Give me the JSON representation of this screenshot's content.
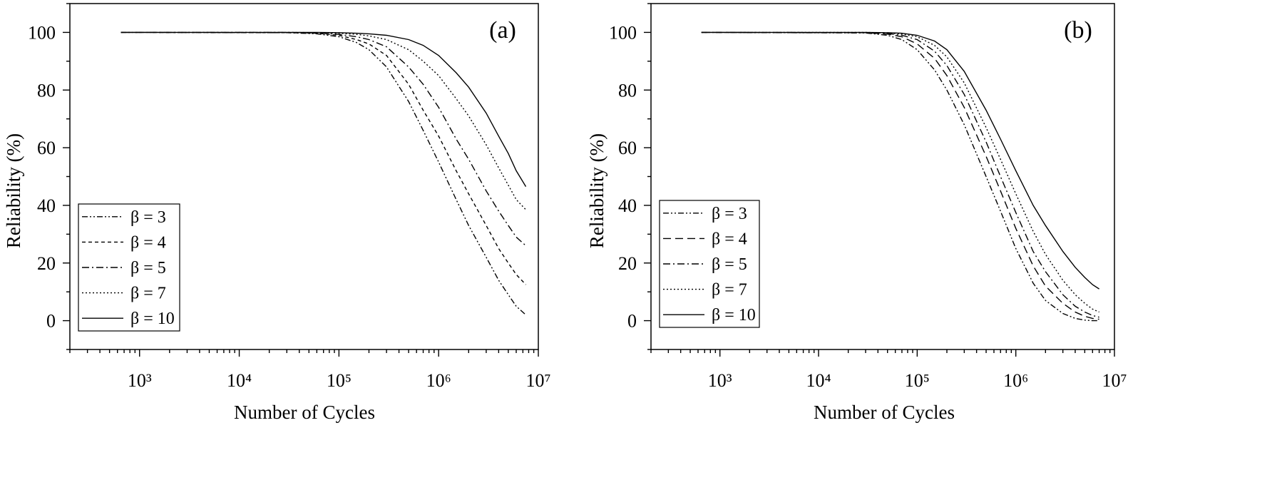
{
  "chart_data": [
    {
      "type": "line",
      "panel_label": "(a)",
      "xlabel": "Number of Cycles",
      "ylabel": "Reliability (%)",
      "x_scale": "log",
      "xlim": [
        200,
        10000000
      ],
      "ylim": [
        -10,
        110
      ],
      "x_ticks": [
        1000,
        10000,
        100000,
        1000000,
        10000000
      ],
      "y_ticks": [
        0,
        20,
        40,
        60,
        80,
        100
      ],
      "legend_position": "lower-left",
      "series": [
        {
          "name": "β = 3",
          "dash": "dash-dot-dot",
          "x": [
            650,
            30000,
            60000,
            100000,
            150000,
            200000,
            300000,
            500000,
            700000,
            1000000,
            1500000,
            2000000,
            3000000,
            4000000,
            5000000,
            6000000,
            7500000
          ],
          "y": [
            100,
            99.9,
            99.5,
            98.5,
            96.5,
            94,
            88,
            76,
            66,
            55,
            42,
            33,
            22,
            14,
            9,
            5,
            2
          ]
        },
        {
          "name": "β = 4",
          "dash": "short-dash",
          "x": [
            650,
            30000,
            60000,
            100000,
            150000,
            200000,
            300000,
            500000,
            700000,
            1000000,
            1500000,
            2000000,
            3000000,
            4000000,
            5000000,
            6000000,
            7500000
          ],
          "y": [
            100,
            99.9,
            99.7,
            99,
            97.5,
            96,
            92,
            82,
            73,
            64,
            52,
            44,
            33,
            25,
            20,
            16,
            12.5
          ]
        },
        {
          "name": "β = 5",
          "dash": "dash-dot",
          "x": [
            650,
            30000,
            60000,
            100000,
            150000,
            200000,
            300000,
            500000,
            700000,
            1000000,
            1500000,
            2000000,
            3000000,
            4000000,
            5000000,
            6000000,
            7500000
          ],
          "y": [
            100,
            100,
            99.8,
            99.3,
            98.5,
            97.5,
            95,
            88,
            82,
            74,
            63,
            56,
            45,
            38,
            33,
            29,
            26
          ]
        },
        {
          "name": "β = 7",
          "dash": "dotted",
          "x": [
            650,
            30000,
            60000,
            100000,
            150000,
            200000,
            300000,
            500000,
            700000,
            1000000,
            1500000,
            2000000,
            3000000,
            4000000,
            5000000,
            6000000,
            7500000
          ],
          "y": [
            100,
            100,
            99.9,
            99.7,
            99.3,
            98.8,
            97.5,
            94,
            90,
            85,
            77,
            71,
            61,
            53,
            47,
            42,
            38.5
          ]
        },
        {
          "name": "β = 10",
          "dash": "solid",
          "x": [
            650,
            30000,
            60000,
            100000,
            150000,
            200000,
            300000,
            500000,
            700000,
            1000000,
            1500000,
            2000000,
            3000000,
            4000000,
            5000000,
            6000000,
            7500000
          ],
          "y": [
            100,
            100,
            100,
            99.9,
            99.7,
            99.5,
            99,
            97.5,
            95.5,
            92,
            86,
            81,
            72,
            64,
            58,
            52,
            46.5
          ]
        }
      ]
    },
    {
      "type": "line",
      "panel_label": "(b)",
      "xlabel": "Number of Cycles",
      "ylabel": "Reliability (%)",
      "x_scale": "log",
      "xlim": [
        200,
        10000000
      ],
      "ylim": [
        -10,
        110
      ],
      "x_ticks": [
        1000,
        10000,
        100000,
        1000000,
        10000000
      ],
      "y_ticks": [
        0,
        20,
        40,
        60,
        80,
        100
      ],
      "legend_position": "lower-left",
      "series": [
        {
          "name": "β = 3",
          "dash": "dash-dot-dot",
          "x": [
            650,
            30000,
            50000,
            70000,
            100000,
            150000,
            200000,
            300000,
            500000,
            700000,
            1000000,
            1500000,
            2000000,
            3000000,
            4000000,
            5000000,
            6000000,
            7000000
          ],
          "y": [
            100,
            99.8,
            99,
            97.5,
            94,
            87,
            80,
            68,
            50,
            38,
            25,
            13,
            7,
            2.5,
            0.8,
            0.2,
            0,
            0
          ]
        },
        {
          "name": "β = 4",
          "dash": "long-dash",
          "x": [
            650,
            30000,
            50000,
            70000,
            100000,
            150000,
            200000,
            300000,
            500000,
            700000,
            1000000,
            1500000,
            2000000,
            3000000,
            4000000,
            5000000,
            6000000,
            7000000
          ],
          "y": [
            100,
            99.9,
            99.4,
            98.5,
            96,
            91,
            85,
            74,
            57,
            45,
            32,
            19,
            12,
            6,
            3,
            1.5,
            0.8,
            0.5
          ]
        },
        {
          "name": "β = 5",
          "dash": "dash-dot",
          "x": [
            650,
            30000,
            50000,
            70000,
            100000,
            150000,
            200000,
            300000,
            500000,
            700000,
            1000000,
            1500000,
            2000000,
            3000000,
            4000000,
            5000000,
            6000000,
            7000000
          ],
          "y": [
            100,
            99.9,
            99.6,
            99,
            97.5,
            93.5,
            88.5,
            78.5,
            62,
            50,
            37.5,
            24,
            17,
            9,
            5,
            3,
            1.8,
            1.2
          ]
        },
        {
          "name": "β = 7",
          "dash": "dotted",
          "x": [
            650,
            30000,
            50000,
            70000,
            100000,
            150000,
            200000,
            300000,
            500000,
            700000,
            1000000,
            1500000,
            2000000,
            3000000,
            4000000,
            5000000,
            6000000,
            7000000
          ],
          "y": [
            100,
            100,
            99.8,
            99.4,
            98.5,
            95.5,
            91.5,
            82.5,
            67,
            56,
            44,
            31,
            23,
            14,
            9,
            6,
            4,
            3
          ]
        },
        {
          "name": "β = 10",
          "dash": "solid",
          "x": [
            650,
            30000,
            50000,
            70000,
            100000,
            150000,
            200000,
            300000,
            500000,
            700000,
            1000000,
            1500000,
            2000000,
            3000000,
            4000000,
            5000000,
            6000000,
            7000000
          ],
          "y": [
            100,
            100,
            99.9,
            99.7,
            99,
            97,
            94,
            86.5,
            73,
            63,
            52,
            40,
            33,
            24,
            18.5,
            15,
            12.5,
            11
          ]
        }
      ]
    }
  ]
}
